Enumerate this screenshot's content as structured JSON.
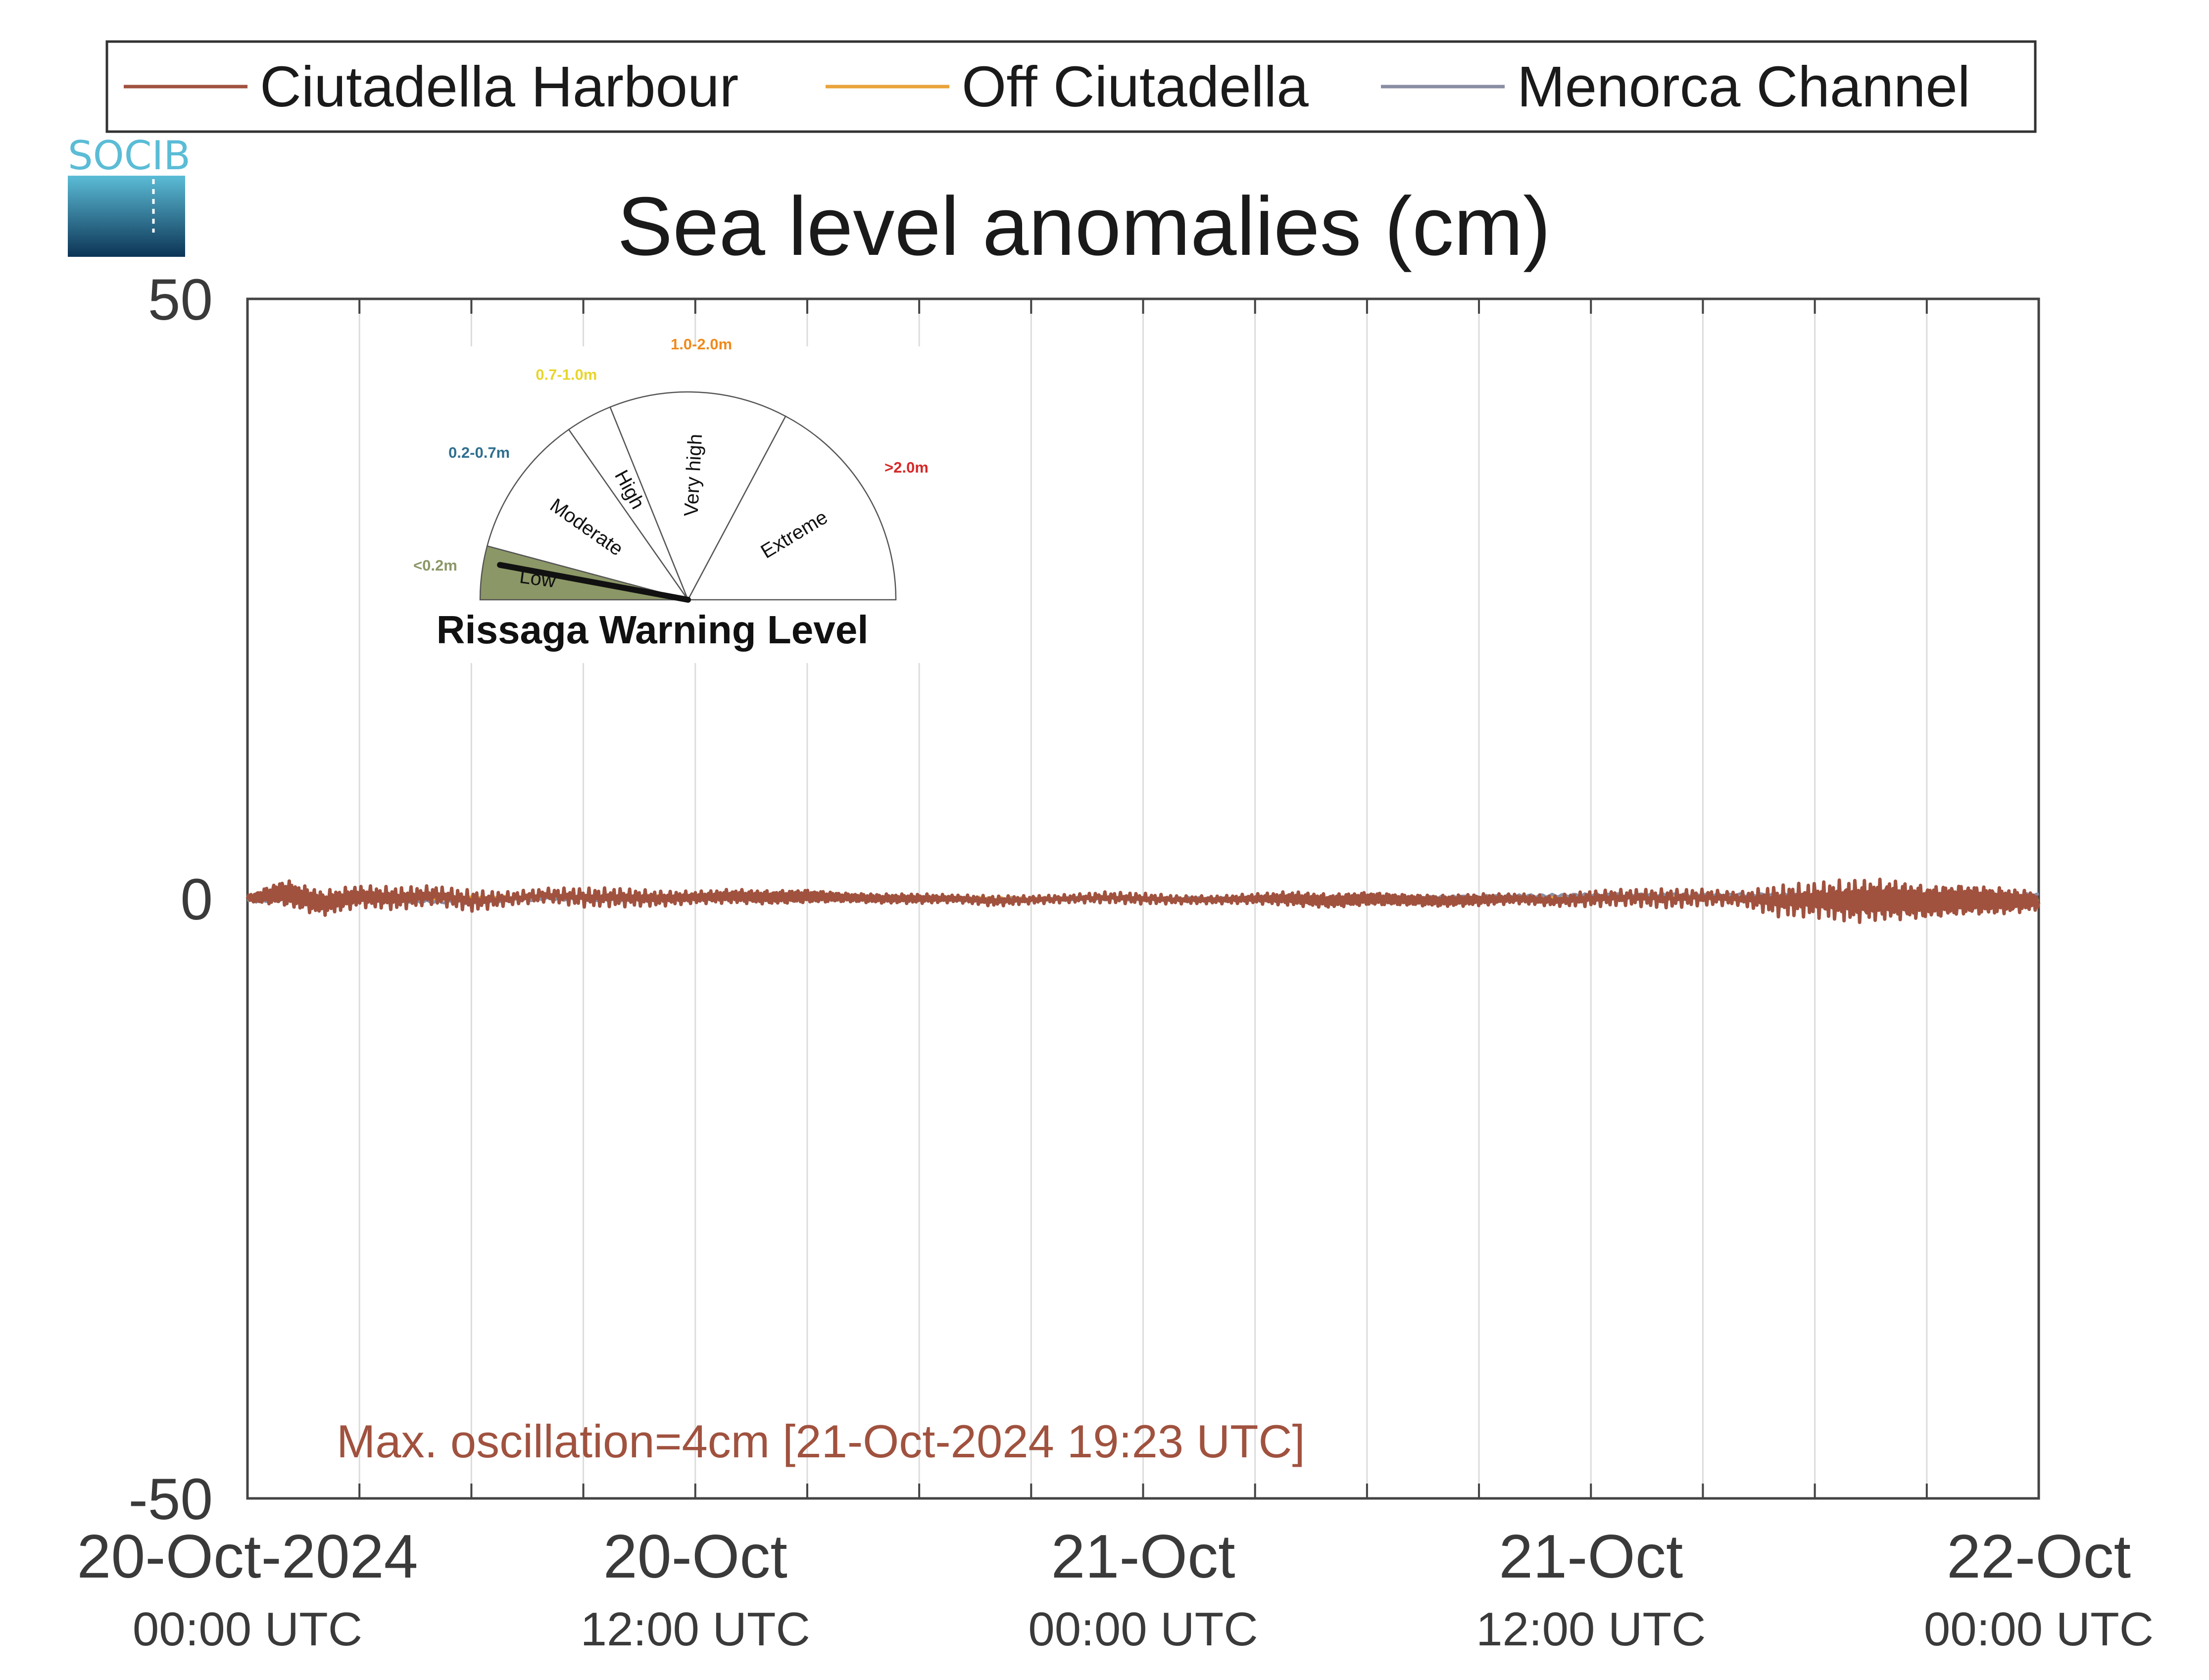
{
  "chart_data": {
    "type": "line",
    "title": "Sea level anomalies (cm)",
    "ylabel": "",
    "xlabel": "",
    "ylim": [
      -50,
      50
    ],
    "yticks": [
      "50",
      "0",
      "-50"
    ],
    "xlim": [
      0,
      48
    ],
    "x_units": "hours since 20-Oct-2024 00:00 UTC",
    "grid": "vertical",
    "legend_position": "top",
    "xticks": [
      {
        "x": 0,
        "date": "20-Oct-2024",
        "time": "00:00 UTC"
      },
      {
        "x": 12,
        "date": "20-Oct",
        "time": "12:00 UTC"
      },
      {
        "x": 24,
        "date": "21-Oct",
        "time": "00:00 UTC"
      },
      {
        "x": 36,
        "date": "21-Oct",
        "time": "12:00 UTC"
      },
      {
        "x": 48,
        "date": "22-Oct",
        "time": "00:00 UTC"
      }
    ],
    "series": [
      {
        "name": "Ciutadella Harbour",
        "color": "#a0523f",
        "x": [
          0,
          1,
          2,
          3,
          4,
          5,
          6,
          7,
          8,
          9,
          10,
          11,
          12,
          13,
          14,
          15,
          16,
          17,
          18,
          19,
          20,
          21,
          22,
          23,
          24,
          25,
          26,
          27,
          28,
          29,
          30,
          31,
          32,
          33,
          34,
          35,
          36,
          37,
          38,
          39,
          40,
          41,
          42,
          43,
          44,
          45,
          46,
          47,
          48
        ],
        "y": [
          0,
          0.5,
          -0.4,
          0.2,
          0,
          0.3,
          -0.2,
          0,
          0.3,
          0.1,
          0.1,
          0,
          0.1,
          0.2,
          0.1,
          0.2,
          0.1,
          0,
          0,
          0,
          -0.2,
          -0.1,
          0,
          0.1,
          0,
          -0.1,
          -0.1,
          0,
          0,
          -0.2,
          0,
          -0.1,
          -0.2,
          -0.1,
          0,
          -0.2,
          0,
          0.1,
          0,
          0.1,
          0,
          -0.2,
          -0.1,
          -0.2,
          -0.1,
          -0.3,
          -0.1,
          -0.2,
          -0.2
        ],
        "amplitude": [
          0.3,
          1.2,
          1.1,
          0.9,
          0.9,
          0.7,
          0.8,
          0.5,
          0.5,
          0.7,
          0.7,
          0.6,
          0.5,
          0.6,
          0.6,
          0.6,
          0.4,
          0.4,
          0.4,
          0.3,
          0.4,
          0.3,
          0.3,
          0.4,
          0.4,
          0.3,
          0.3,
          0.4,
          0.6,
          0.6,
          0.6,
          0.5,
          0.5,
          0.5,
          0.4,
          0.4,
          0.6,
          0.6,
          0.7,
          0.6,
          0.5,
          1.2,
          1.4,
          1.8,
          1.8,
          1.5,
          1.4,
          1.2,
          0.8
        ]
      },
      {
        "name": "Off Ciutadella",
        "color": "#e8a33a",
        "x": [
          0,
          4,
          8,
          12,
          16,
          20,
          24,
          28,
          32,
          36,
          40,
          42,
          44,
          46,
          48
        ],
        "y": [
          0,
          0,
          0.1,
          0.2,
          0.1,
          0,
          0,
          0,
          0,
          0.1,
          0,
          -0.2,
          -0.2,
          -0.1,
          -0.2
        ]
      },
      {
        "name": "Menorca Channel",
        "color": "#8a8ea4",
        "x": [
          0,
          2,
          4,
          6,
          8,
          10,
          12,
          14,
          16,
          18,
          20,
          22,
          24,
          26,
          28,
          30,
          32,
          34,
          36,
          38,
          40,
          42,
          44,
          46,
          48
        ],
        "y": [
          -0.2,
          0,
          -0.2,
          -0.3,
          0,
          -0.1,
          0.1,
          0.1,
          0.1,
          0,
          -0.1,
          0,
          0,
          0,
          -0.1,
          0,
          0.1,
          0.2,
          0.3,
          0.3,
          0.3,
          0.3,
          0.2,
          0.3,
          0.3
        ]
      }
    ],
    "annotation": "Max. oscillation=4cm [21-Oct-2024 19:23 UTC]",
    "annotation_color": "#a0523f"
  },
  "logo": {
    "text": "SOCIB"
  },
  "gauge": {
    "title": "Rissaga Warning Level",
    "level": "Low",
    "categories": [
      {
        "label": "Low",
        "range": "<0.2m",
        "color": "#8b9766"
      },
      {
        "label": "Moderate",
        "range": "0.2-0.7m",
        "color": "#2f6f8f"
      },
      {
        "label": "High",
        "range": "0.7-1.0m",
        "color": "#e7d62a"
      },
      {
        "label": "Very high",
        "range": "1.0-2.0m",
        "color": "#ef8a1c"
      },
      {
        "label": "Extreme",
        "range": ">2.0m",
        "color": "#d62828"
      }
    ]
  }
}
